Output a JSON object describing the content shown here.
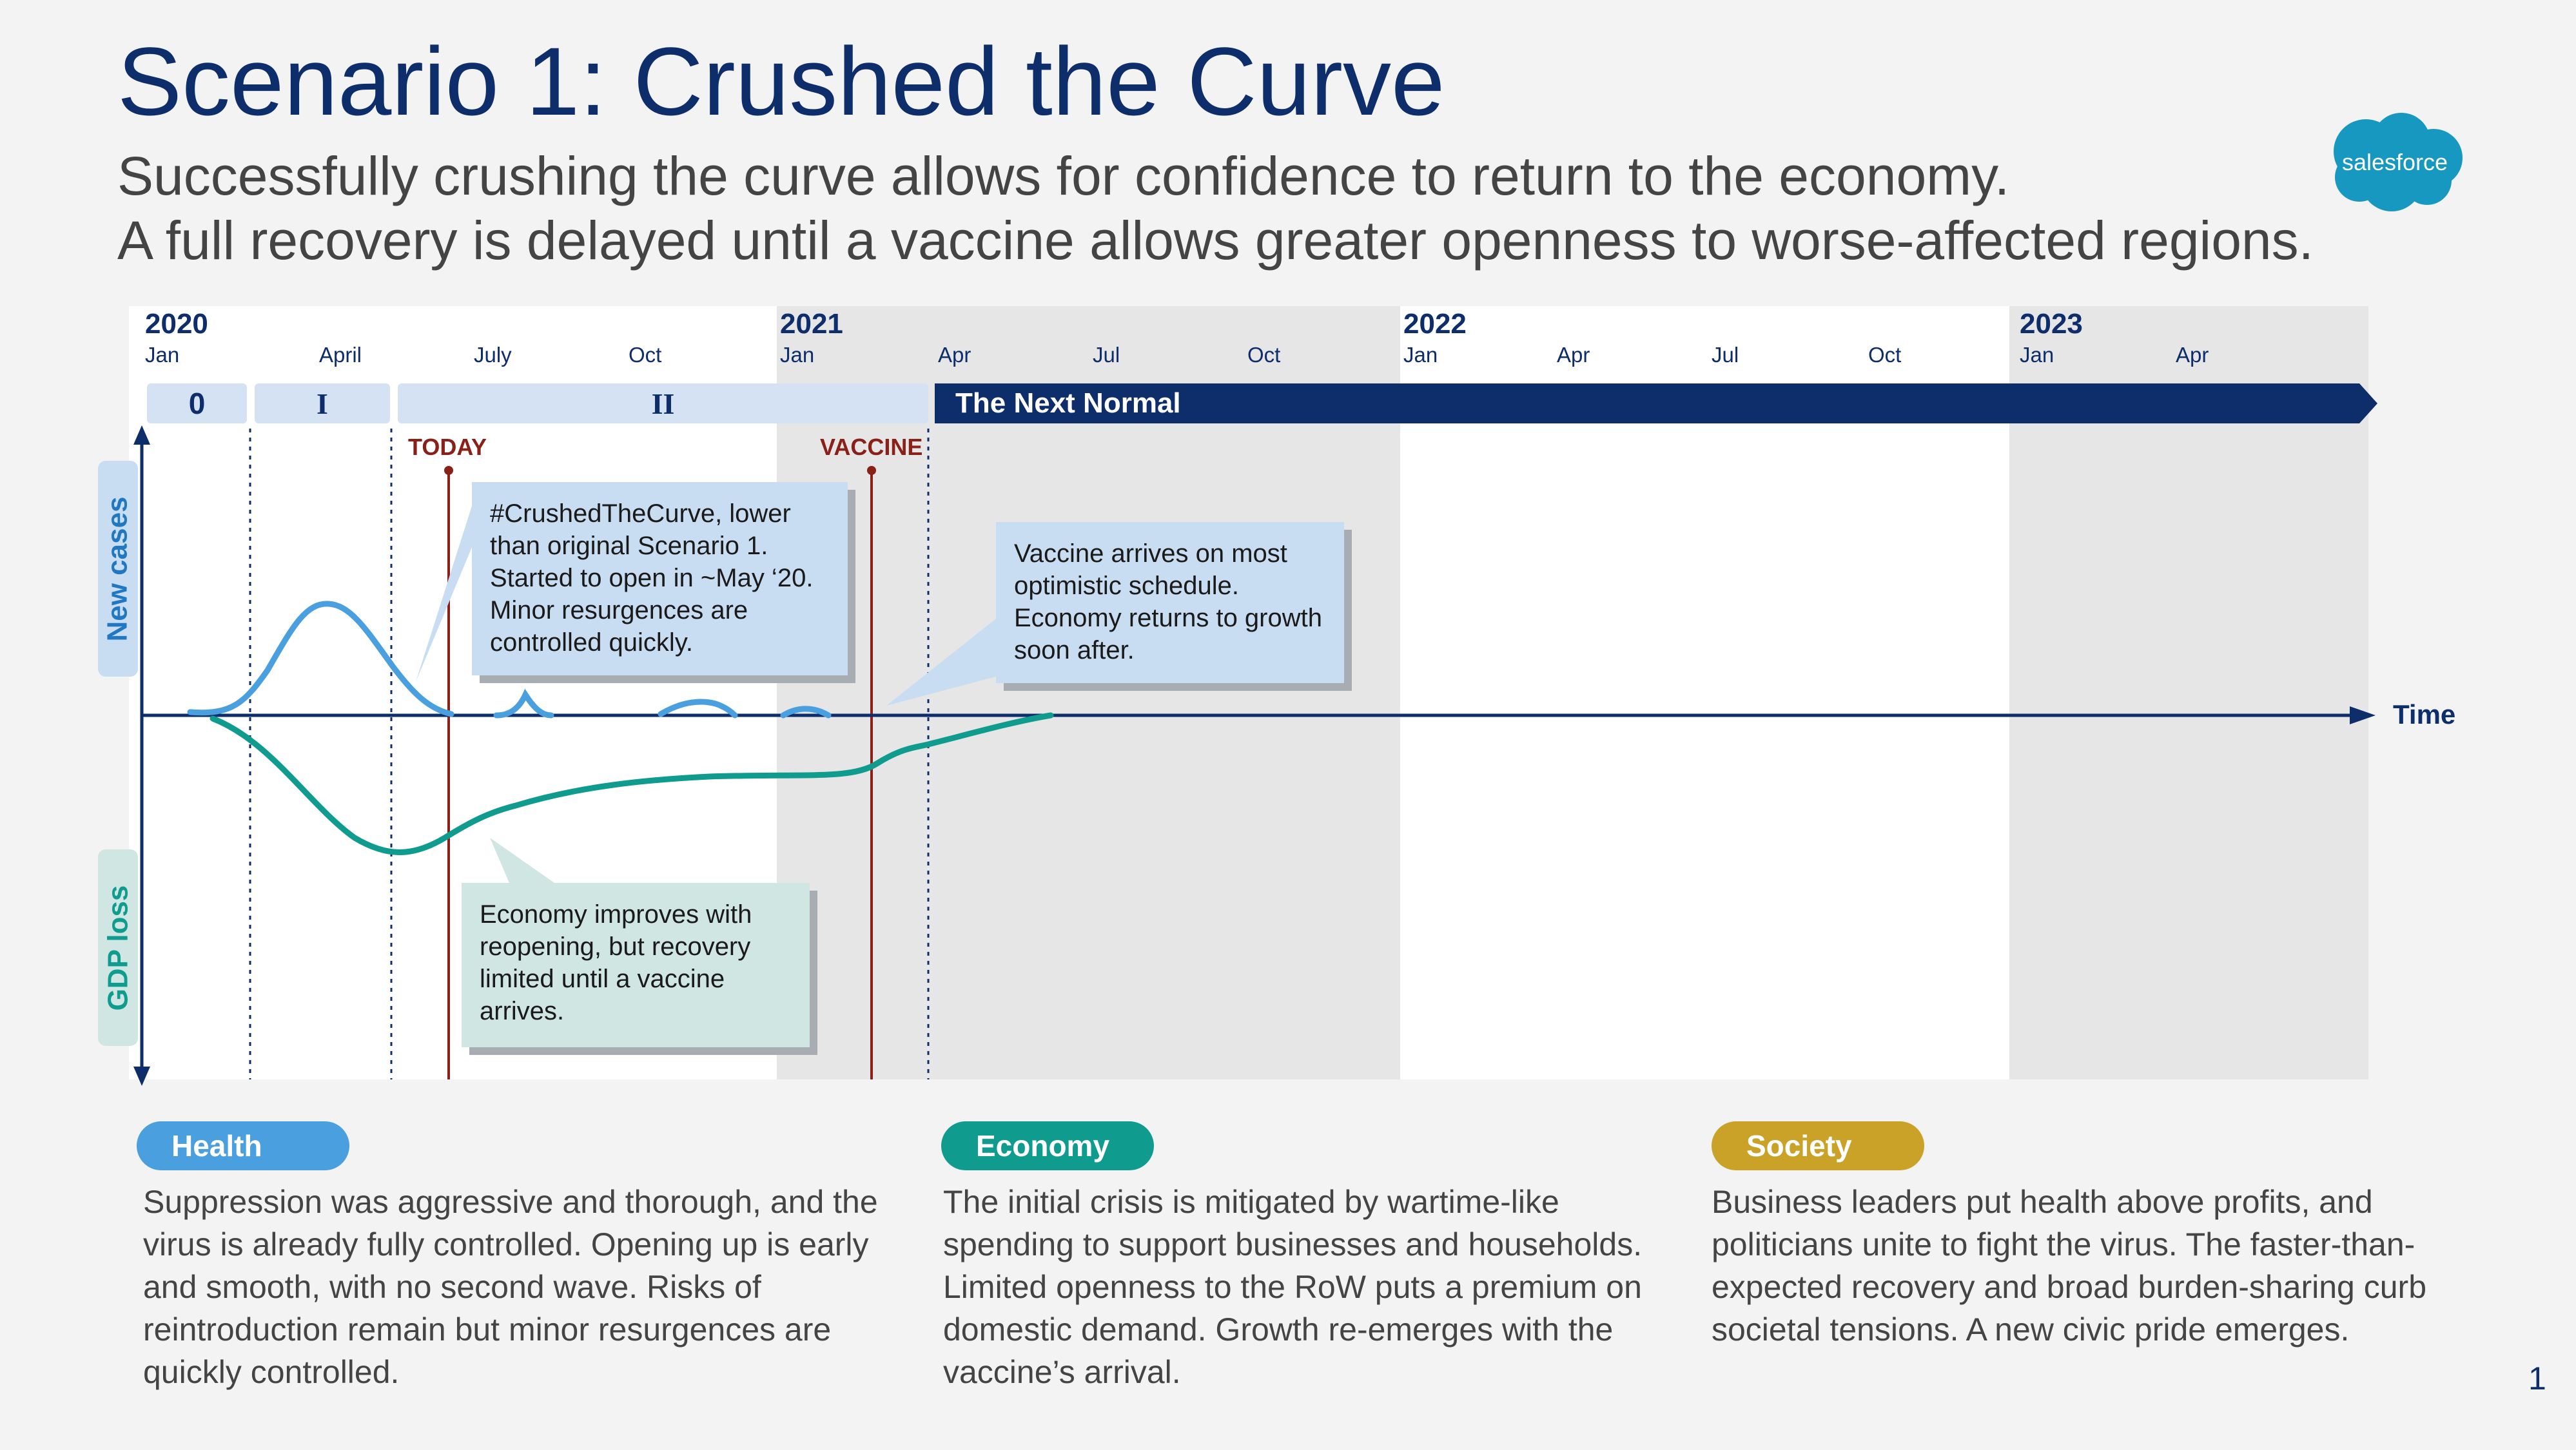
{
  "header": {
    "title": "Scenario 1: Crushed the Curve",
    "subtitle_line1": "Successfully crushing the curve allows for confidence to return to the economy.",
    "subtitle_line2": "A full recovery is delayed until a vaccine allows greater openness to worse-affected regions."
  },
  "logo": {
    "text": "salesforce",
    "color": "#1798c1"
  },
  "timeline": {
    "years": [
      "2020",
      "2021",
      "2022",
      "2023"
    ],
    "months": [
      "Jan",
      "April",
      "July",
      "Oct",
      "Jan",
      "Apr",
      "Jul",
      "Oct",
      "Jan",
      "Apr",
      "Jul",
      "Oct",
      "Jan",
      "Apr"
    ],
    "phases": [
      "0",
      "I",
      "II"
    ],
    "next_normal": "The Next Normal",
    "markers": {
      "today": "TODAY",
      "vaccine": "VACCINE"
    },
    "axes": {
      "new_cases": "New cases",
      "gdp_loss": "GDP loss",
      "time": "Time"
    }
  },
  "callouts": {
    "crushed": "#CrushedTheCurve, lower than original Scenario 1. Started to open in ~May ‘20. Minor resurgences are controlled quickly.",
    "vaccine": "Vaccine arrives on most optimistic schedule. Economy returns to growth soon after.",
    "economy": "Economy improves with reopening, but recovery limited until a vaccine arrives."
  },
  "sections": [
    {
      "label": "Health",
      "color": "#4a9fdf",
      "text": "Suppression was aggressive and thorough, and the virus is already fully controlled. Opening up is early and smooth, with no second wave. Risks of reintroduction remain but minor resurgences are quickly controlled."
    },
    {
      "label": "Economy",
      "color": "#0f9b8e",
      "text": "The initial crisis is mitigated by wartime-like spending to support businesses and households. Limited openness to the RoW puts a premium on domestic demand. Growth re-emerges with the vaccine’s arrival."
    },
    {
      "label": "Society",
      "color": "#c9a227",
      "text": "Business leaders put health above profits, and politicians unite to fight the virus. The faster-than- expected recovery and broad burden-sharing curb societal tensions. A new civic pride emerges."
    }
  ],
  "page_number": "1",
  "colors": {
    "navy": "#0d2d6b",
    "health": "#4a9fdf",
    "economy": "#0f9b8e",
    "marker": "#8b2019"
  }
}
